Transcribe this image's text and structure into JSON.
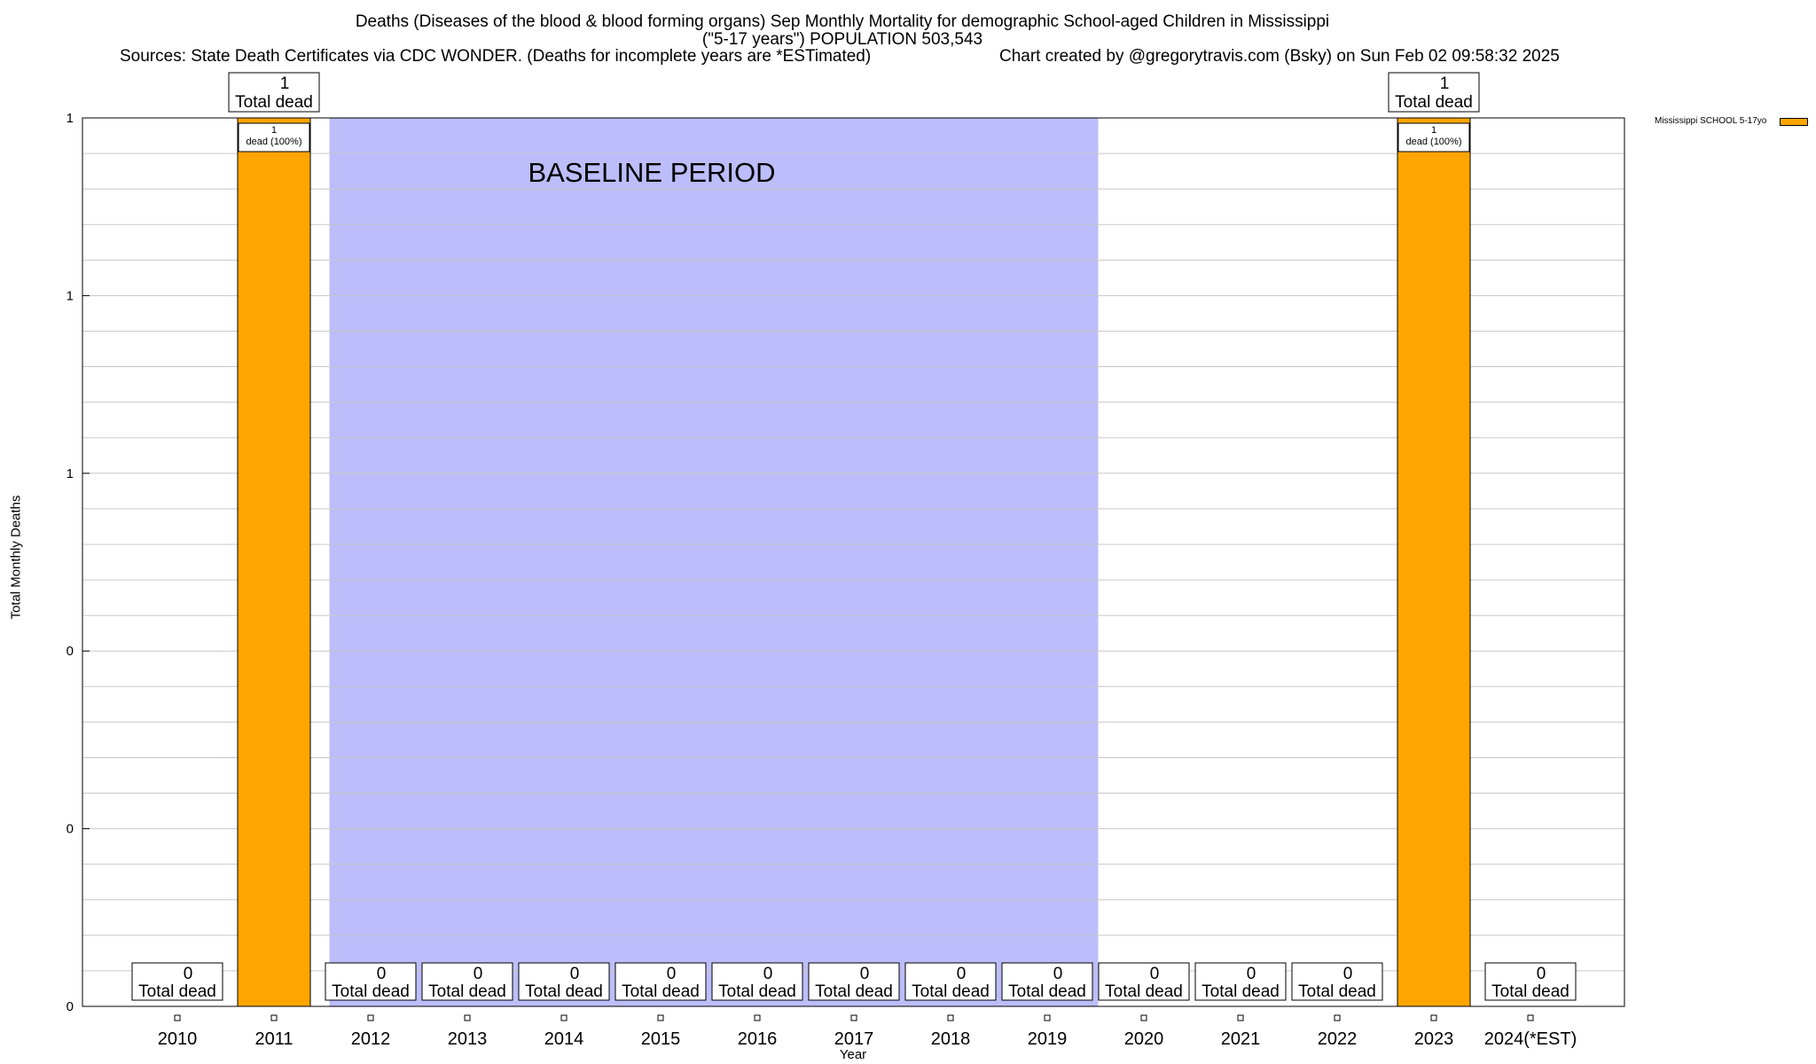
{
  "header": {
    "title_line1": "Deaths (Diseases of the blood & blood forming organs) Sep Monthly Mortality for demographic School-aged Children in Mississippi",
    "title_line2": "(\"5-17 years\") POPULATION 503,543",
    "sources": "Sources: State Death Certificates via CDC WONDER. (Deaths for incomplete years are *ESTimated)",
    "credit": "Chart created by @gregorytravis.com (Bsky) on Sun Feb 02 09:58:32 2025"
  },
  "chart_data": {
    "type": "bar",
    "xlabel": "Year",
    "ylabel": "Total Monthly Deaths",
    "ylim": [
      0,
      1
    ],
    "ytick_labels": [
      "0",
      "0",
      "0",
      "1",
      "1",
      "1"
    ],
    "grid": true,
    "legend_position": "top-right",
    "baseline_label": "BASELINE PERIOD",
    "baseline_range": [
      "2012",
      "2019"
    ],
    "categories": [
      "2010",
      "2011",
      "2012",
      "2013",
      "2014",
      "2015",
      "2016",
      "2017",
      "2018",
      "2019",
      "2020",
      "2021",
      "2022",
      "2023",
      "2024(*EST)"
    ],
    "series": [
      {
        "name": "Mississippi SCHOOL 5-17yo",
        "values": [
          0,
          1,
          0,
          0,
          0,
          0,
          0,
          0,
          0,
          0,
          0,
          0,
          0,
          1,
          0
        ]
      }
    ],
    "total_label": "Total dead",
    "share_labels": [
      "",
      "dead (100%)",
      "",
      "",
      "",
      "",
      "",
      "",
      "",
      "",
      "",
      "",
      "",
      "dead (100%)",
      ""
    ]
  },
  "colors": {
    "bar": "#ffa500",
    "baseline": "#bdbdfb",
    "grid": "#c8c8c8"
  }
}
